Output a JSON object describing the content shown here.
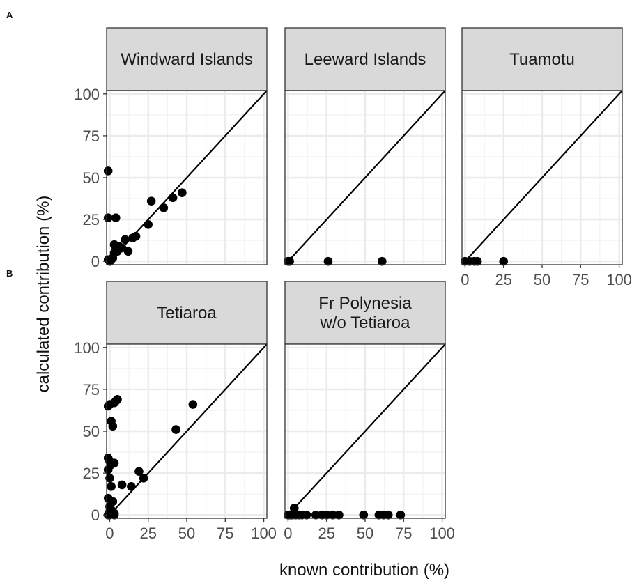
{
  "chart_data": {
    "type": "scatter",
    "panel_letters": [
      "A",
      "B"
    ],
    "xlabel": "known contribution (%)",
    "ylabel": "calculated contribution (%)",
    "xlim": [
      -2,
      102
    ],
    "ylim": [
      -2,
      102
    ],
    "x_ticks": [
      "0",
      "25",
      "50",
      "75",
      "100"
    ],
    "y_ticks": [
      "0",
      "25",
      "50",
      "75",
      "100"
    ],
    "reference_line": "y = x",
    "grid": true,
    "colors": {
      "points": "#000000",
      "strip_fill": "#d9d9d9",
      "grid": "#ebebeb",
      "panel_border": "#333333"
    },
    "panels": [
      {
        "strip": [
          "Windward Islands"
        ],
        "x": [
          -1,
          0,
          1,
          2,
          3,
          3,
          4,
          5,
          6,
          8,
          10,
          12,
          15,
          17,
          25,
          27,
          35,
          41,
          47,
          -1,
          -1,
          4
        ],
        "y": [
          54,
          0,
          1,
          2,
          5,
          10,
          7,
          6,
          9,
          8,
          13,
          6,
          14,
          15,
          22,
          36,
          32,
          38,
          41,
          26,
          1,
          26
        ]
      },
      {
        "strip": [
          "Leeward Islands"
        ],
        "x": [
          0,
          1,
          26,
          61
        ],
        "y": [
          0,
          0,
          0,
          0
        ]
      },
      {
        "strip": [
          "Tuamotu"
        ],
        "x": [
          0,
          3,
          6,
          8,
          25
        ],
        "y": [
          0,
          0,
          0,
          0,
          0
        ]
      },
      {
        "strip": [
          "Tetiaroa"
        ],
        "x": [
          -1,
          0,
          1,
          2,
          3,
          4,
          5,
          -1,
          0,
          1,
          -1,
          0,
          1,
          3,
          -1,
          0,
          0,
          2,
          3,
          8,
          14,
          19,
          22,
          43,
          54,
          -1,
          0,
          1,
          3
        ],
        "y": [
          65,
          66,
          56,
          53,
          67,
          68,
          69,
          34,
          32,
          30,
          27,
          22,
          17,
          31,
          10,
          5,
          2,
          8,
          1,
          18,
          17,
          26,
          22,
          51,
          66,
          0,
          0,
          3,
          0
        ]
      },
      {
        "strip": [
          "Fr Polynesia",
          "w/o Tetiaroa"
        ],
        "x": [
          0,
          1,
          2,
          3,
          4,
          5,
          7,
          9,
          12,
          18,
          22,
          25,
          29,
          33,
          49,
          59,
          62,
          65,
          73
        ],
        "y": [
          0,
          0,
          0,
          0,
          4,
          0,
          0,
          0,
          0,
          0,
          0,
          0,
          0,
          0,
          0,
          0,
          0,
          0,
          0
        ]
      }
    ]
  }
}
